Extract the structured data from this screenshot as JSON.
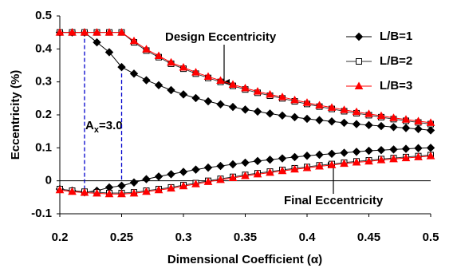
{
  "chart_data": {
    "type": "line",
    "xlabel": "Dimensional Coefficient (α)",
    "ylabel": "Eccentricity (%)",
    "annotations": {
      "design": "Design Eccentricity",
      "final": "Final Eccentricity",
      "ratio": {
        "base": "A",
        "sub": "x",
        "rest": "=3.0"
      }
    },
    "vlines": [
      0.22,
      0.25
    ],
    "vline_color": "#0000cc",
    "x": [
      0.2,
      0.21,
      0.22,
      0.23,
      0.24,
      0.25,
      0.26,
      0.27,
      0.28,
      0.29,
      0.3,
      0.31,
      0.32,
      0.33,
      0.34,
      0.35,
      0.36,
      0.37,
      0.38,
      0.39,
      0.4,
      0.41,
      0.42,
      0.43,
      0.44,
      0.45,
      0.46,
      0.47,
      0.48,
      0.49,
      0.5
    ],
    "series": [
      {
        "name": "L/B=1",
        "color": "#000000",
        "marker": "diamond",
        "filled": true,
        "values": [
          0.45,
          0.45,
          0.45,
          0.42,
          0.39,
          0.345,
          0.325,
          0.305,
          0.29,
          0.275,
          0.262,
          0.251,
          0.241,
          0.232,
          0.224,
          0.216,
          0.21,
          0.204,
          0.198,
          0.193,
          0.188,
          0.184,
          0.18,
          0.176,
          0.172,
          0.169,
          0.166,
          0.163,
          0.16,
          0.157,
          0.153
        ],
        "values_final": [
          -0.025,
          -0.03,
          -0.035,
          -0.03,
          -0.02,
          -0.015,
          -0.005,
          0.005,
          0.013,
          0.02,
          0.027,
          0.034,
          0.04,
          0.045,
          0.05,
          0.055,
          0.06,
          0.064,
          0.068,
          0.072,
          0.076,
          0.079,
          0.082,
          0.085,
          0.088,
          0.091,
          0.093,
          0.095,
          0.097,
          0.099,
          0.1
        ]
      },
      {
        "name": "L/B=2",
        "color": "#333333",
        "marker": "square",
        "filled": false,
        "values": [
          0.45,
          0.45,
          0.45,
          0.45,
          0.45,
          0.45,
          0.42,
          0.395,
          0.375,
          0.355,
          0.34,
          0.325,
          0.312,
          0.3,
          0.288,
          0.277,
          0.267,
          0.258,
          0.25,
          0.241,
          0.233,
          0.225,
          0.218,
          0.211,
          0.205,
          0.199,
          0.193,
          0.187,
          0.182,
          0.177,
          0.172
        ],
        "values_final": [
          -0.025,
          -0.03,
          -0.033,
          -0.035,
          -0.037,
          -0.037,
          -0.035,
          -0.03,
          -0.025,
          -0.02,
          -0.013,
          -0.007,
          0,
          0.006,
          0.012,
          0.018,
          0.023,
          0.028,
          0.033,
          0.038,
          0.042,
          0.047,
          0.051,
          0.055,
          0.059,
          0.062,
          0.066,
          0.069,
          0.072,
          0.075,
          0.078
        ]
      },
      {
        "name": "L/B=3",
        "color": "#ff0000",
        "marker": "triangle",
        "filled": true,
        "values": [
          0.45,
          0.45,
          0.45,
          0.45,
          0.45,
          0.45,
          0.424,
          0.399,
          0.379,
          0.359,
          0.344,
          0.329,
          0.316,
          0.304,
          0.292,
          0.281,
          0.271,
          0.262,
          0.254,
          0.245,
          0.237,
          0.229,
          0.222,
          0.215,
          0.209,
          0.203,
          0.197,
          0.191,
          0.186,
          0.181,
          0.176
        ],
        "values_final": [
          -0.028,
          -0.033,
          -0.036,
          -0.038,
          -0.04,
          -0.04,
          -0.038,
          -0.033,
          -0.028,
          -0.023,
          -0.016,
          -0.01,
          -0.003,
          0.003,
          0.009,
          0.015,
          0.02,
          0.025,
          0.03,
          0.035,
          0.039,
          0.044,
          0.048,
          0.052,
          0.056,
          0.059,
          0.063,
          0.066,
          0.069,
          0.072,
          0.075
        ]
      }
    ],
    "xlim": [
      0.2,
      0.5
    ],
    "xticks": [
      0.2,
      0.25,
      0.3,
      0.35,
      0.4,
      0.45,
      0.5
    ],
    "ylim": [
      -0.1,
      0.5
    ],
    "yticks": [
      -0.1,
      0,
      0.1,
      0.2,
      0.3,
      0.4,
      0.5
    ],
    "legend": "upper right"
  }
}
